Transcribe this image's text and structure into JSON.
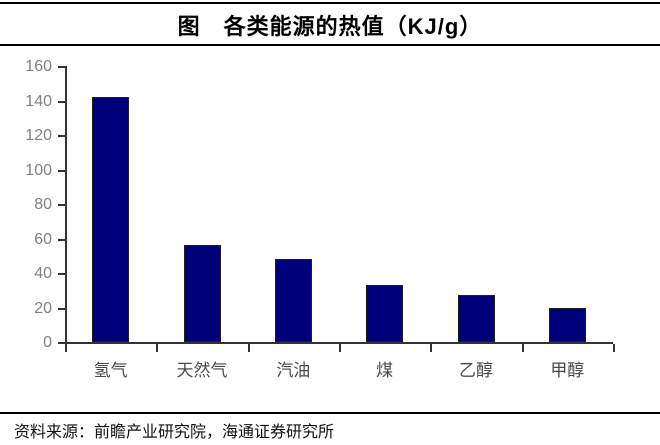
{
  "header": {
    "title": "图　各类能源的热值（KJ/g）"
  },
  "chart_data": {
    "type": "bar",
    "title": "图　各类能源的热值（KJ/g）",
    "categories": [
      "氢气",
      "天然气",
      "汽油",
      "煤",
      "乙醇",
      "甲醇"
    ],
    "values": [
      142,
      56,
      48,
      33,
      27,
      20
    ],
    "xlabel": "",
    "ylabel": "",
    "ylim": [
      0,
      160
    ],
    "y_ticks": [
      0,
      20,
      40,
      60,
      80,
      100,
      120,
      140,
      160
    ],
    "grid": false,
    "legend_position": "none",
    "bar_color": "#00007B",
    "axis_color": "#333333",
    "tick_label_color": "#808080",
    "category_label_color": "#4a4a4a"
  },
  "footer": {
    "source": "资料来源：前瞻产业研究院，海通证券研究所"
  }
}
